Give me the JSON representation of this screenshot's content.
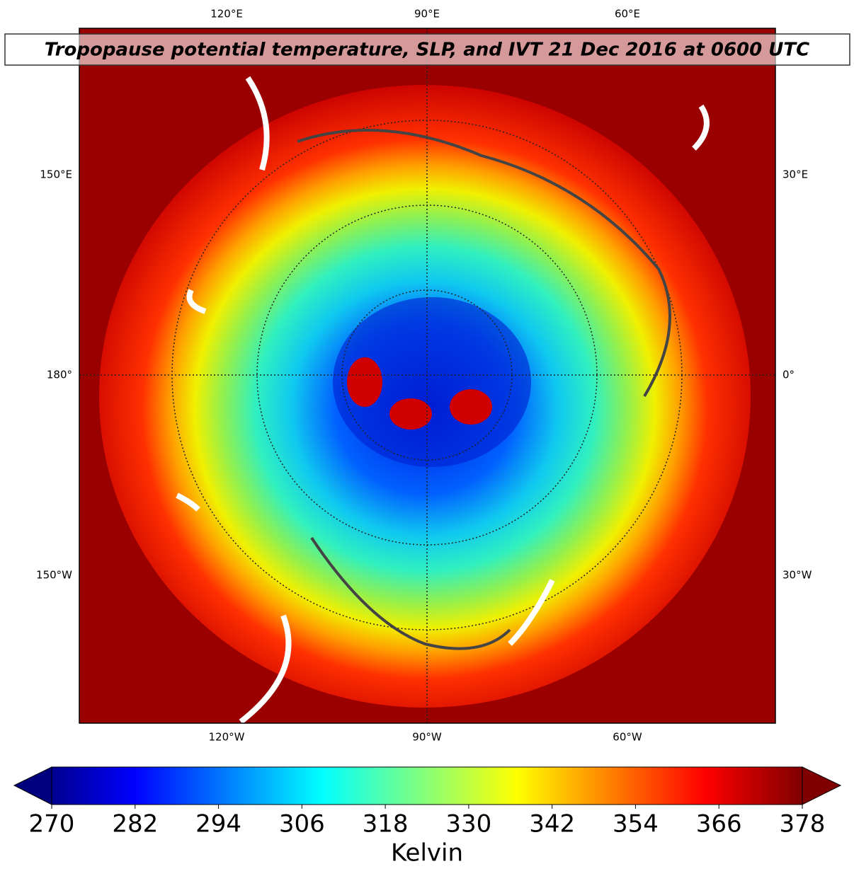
{
  "title": "Tropopause potential temperature, SLP, and IVT 21 Dec 2016 at 0600 UTC",
  "lon_labels": {
    "top": [
      "120°E",
      "90°E",
      "60°E"
    ],
    "left": [
      "150°E",
      "180°",
      "150°W"
    ],
    "right": [
      "30°E",
      "0°",
      "30°W"
    ],
    "bottom": [
      "120°W",
      "90°W",
      "60°W"
    ]
  },
  "colorbar": {
    "label": "Kelvin",
    "colormap": "jet",
    "range": [
      270,
      378
    ],
    "ticks": [
      270,
      282,
      294,
      306,
      318,
      330,
      342,
      354,
      366,
      378
    ]
  }
}
